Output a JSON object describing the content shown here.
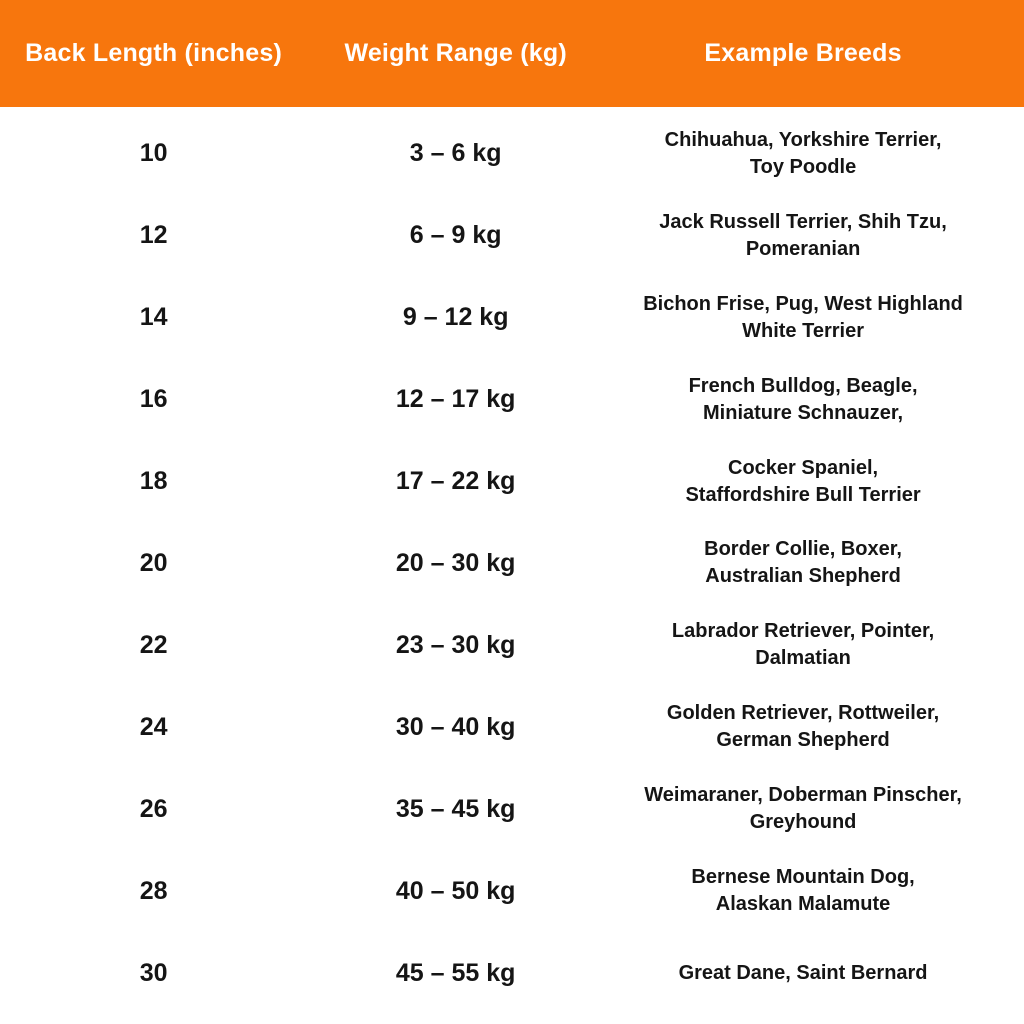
{
  "header": {
    "columns": [
      {
        "label": "Back Length (inches)"
      },
      {
        "label": "Weight Range (kg)"
      },
      {
        "label": "Example Breeds"
      }
    ]
  },
  "table": {
    "rows": [
      {
        "length": "10",
        "weight": "3 – 6 kg",
        "breeds": "Chihuahua,  Yorkshire Terrier,\nToy Poodle"
      },
      {
        "length": "12",
        "weight": "6 – 9 kg",
        "breeds": "Jack Russell Terrier, Shih Tzu,\nPomeranian"
      },
      {
        "length": "14",
        "weight": "9 – 12 kg",
        "breeds": "Bichon Frise, Pug, West Highland\nWhite Terrier"
      },
      {
        "length": "16",
        "weight": "12 – 17 kg",
        "breeds": "French Bulldog, Beagle,\nMiniature Schnauzer,"
      },
      {
        "length": "18",
        "weight": "17 – 22 kg",
        "breeds": "Cocker Spaniel,\nStaffordshire Bull Terrier"
      },
      {
        "length": "20",
        "weight": "20 – 30 kg",
        "breeds": "Border Collie, Boxer,\nAustralian Shepherd"
      },
      {
        "length": "22",
        "weight": "23 – 30 kg",
        "breeds": "Labrador Retriever, Pointer,\nDalmatian"
      },
      {
        "length": "24",
        "weight": "30 – 40 kg",
        "breeds": "Golden Retriever, Rottweiler,\nGerman Shepherd"
      },
      {
        "length": "26",
        "weight": "35 – 45 kg",
        "breeds": "Weimaraner, Doberman Pinscher,\nGreyhound"
      },
      {
        "length": "28",
        "weight": "40 – 50 kg",
        "breeds": "Bernese Mountain Dog,\nAlaskan Malamute"
      },
      {
        "length": "30",
        "weight": "45 – 55 kg",
        "breeds": "Great Dane, Saint Bernard"
      }
    ]
  },
  "chart_data": {
    "type": "table",
    "title": "Dog size chart: back length vs weight range with example breeds",
    "columns": [
      "Back Length (inches)",
      "Weight Range (kg)",
      "Example Breeds"
    ],
    "rows": [
      [
        "10",
        "3 – 6 kg",
        "Chihuahua, Yorkshire Terrier, Toy Poodle"
      ],
      [
        "12",
        "6 – 9 kg",
        "Jack Russell Terrier, Shih Tzu, Pomeranian"
      ],
      [
        "14",
        "9 – 12 kg",
        "Bichon Frise, Pug, West Highland White Terrier"
      ],
      [
        "16",
        "12 – 17 kg",
        "French Bulldog, Beagle, Miniature Schnauzer,"
      ],
      [
        "18",
        "17 – 22 kg",
        "Cocker Spaniel, Staffordshire Bull Terrier"
      ],
      [
        "20",
        "20 – 30 kg",
        "Border Collie, Boxer, Australian Shepherd"
      ],
      [
        "22",
        "23 – 30 kg",
        "Labrador Retriever, Pointer, Dalmatian"
      ],
      [
        "24",
        "30 – 40 kg",
        "Golden Retriever, Rottweiler, German Shepherd"
      ],
      [
        "26",
        "35 – 45 kg",
        "Weimaraner, Doberman Pinscher, Greyhound"
      ],
      [
        "28",
        "40 – 50 kg",
        "Bernese Mountain Dog, Alaskan Malamute"
      ],
      [
        "30",
        "45 – 55 kg",
        "Great Dane, Saint Bernard"
      ]
    ],
    "layout_hints": {
      "header_position": "top",
      "grid": false,
      "alignment": "center"
    }
  },
  "colors": {
    "header_background": "#F7760D",
    "header_text": "#FFFFFF",
    "body_text": "#151515",
    "page_background": "#FFFFFF"
  }
}
